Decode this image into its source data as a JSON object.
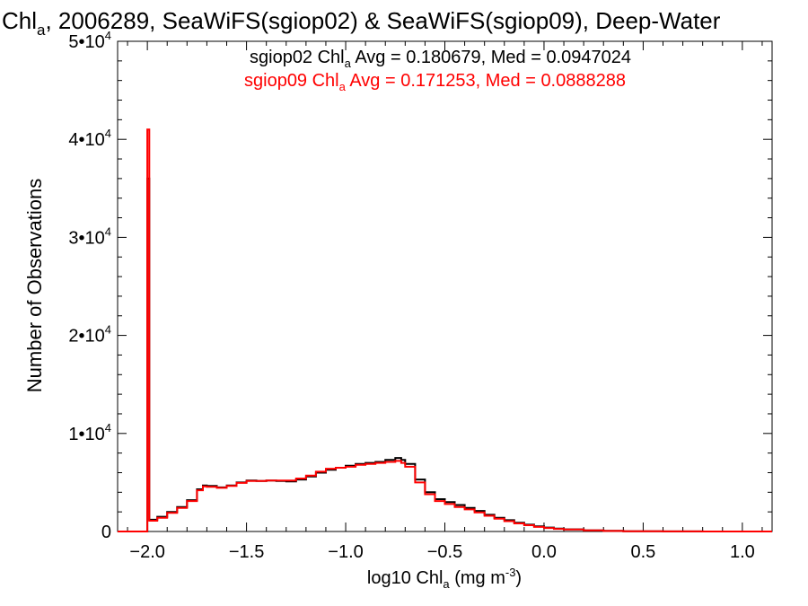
{
  "chart_data": {
    "type": "line",
    "title": {
      "pre": "Chl",
      "sub": "a",
      "post": ", 2006289, SeaWiFS(sgiop02) & SeaWiFS(sgiop09), Deep-Water"
    },
    "xlabel": {
      "pre": "log10 Chl",
      "sub": "a",
      "mid": " (mg m",
      "sup": "-3",
      "post": ")"
    },
    "ylabel": "Number of Observations",
    "xlim": [
      -2.15,
      1.15
    ],
    "ylim": [
      0,
      50000
    ],
    "x_ticks": [
      {
        "value": -2.0,
        "label": "-2.0"
      },
      {
        "value": -1.5,
        "label": "-1.5"
      },
      {
        "value": -1.0,
        "label": "-1.0"
      },
      {
        "value": -0.5,
        "label": "-0.5"
      },
      {
        "value": 0.0,
        "label": "0.0"
      },
      {
        "value": 0.5,
        "label": "0.5"
      },
      {
        "value": 1.0,
        "label": "1.0"
      }
    ],
    "y_ticks": [
      {
        "value": 0,
        "label": "0",
        "exp": ""
      },
      {
        "value": 10000,
        "label": "1•10",
        "exp": "4"
      },
      {
        "value": 20000,
        "label": "2•10",
        "exp": "4"
      },
      {
        "value": 30000,
        "label": "3•10",
        "exp": "4"
      },
      {
        "value": 40000,
        "label": "4•10",
        "exp": "4"
      },
      {
        "value": 50000,
        "label": "5•10",
        "exp": "4"
      }
    ],
    "annotations": [
      {
        "pre": "sgiop02 Chl",
        "sub": "a",
        "post": " Avg = 0.180679, Med = 0.0947024",
        "color": "#000000"
      },
      {
        "pre": "sgiop09 Chl",
        "sub": "a",
        "post": " Avg = 0.171253, Med = 0.0888288",
        "color": "#ff0000"
      }
    ],
    "series": [
      {
        "color": "#000000",
        "x": [
          -2.15,
          -2.0,
          -2.0,
          -1.99,
          -1.95,
          -1.9,
          -1.85,
          -1.8,
          -1.75,
          -1.72,
          -1.7,
          -1.65,
          -1.6,
          -1.55,
          -1.5,
          -1.45,
          -1.4,
          -1.35,
          -1.3,
          -1.25,
          -1.2,
          -1.15,
          -1.1,
          -1.05,
          -1.0,
          -0.95,
          -0.9,
          -0.85,
          -0.8,
          -0.75,
          -0.72,
          -0.7,
          -0.65,
          -0.6,
          -0.55,
          -0.5,
          -0.45,
          -0.4,
          -0.35,
          -0.3,
          -0.25,
          -0.2,
          -0.15,
          -0.1,
          -0.05,
          0.0,
          0.05,
          0.1,
          0.2,
          0.3,
          0.4,
          0.5,
          0.6,
          0.8,
          1.0,
          1.15
        ],
        "y": [
          0,
          0,
          36000,
          1200,
          1500,
          2000,
          2500,
          3200,
          4300,
          4700,
          4650,
          4500,
          4700,
          5000,
          5200,
          5150,
          5200,
          5150,
          5100,
          5300,
          5600,
          6000,
          6300,
          6500,
          6700,
          6900,
          7000,
          7100,
          7300,
          7500,
          7300,
          6900,
          5300,
          4000,
          3300,
          3000,
          2700,
          2400,
          2100,
          1700,
          1400,
          1150,
          900,
          700,
          520,
          400,
          300,
          220,
          120,
          60,
          30,
          15,
          8,
          3,
          1,
          0
        ]
      },
      {
        "color": "#ff0000",
        "x": [
          -2.15,
          -2.0,
          -2.0,
          -1.99,
          -1.95,
          -1.9,
          -1.85,
          -1.8,
          -1.75,
          -1.72,
          -1.7,
          -1.65,
          -1.6,
          -1.55,
          -1.5,
          -1.45,
          -1.4,
          -1.35,
          -1.3,
          -1.25,
          -1.2,
          -1.15,
          -1.1,
          -1.05,
          -1.0,
          -0.95,
          -0.9,
          -0.85,
          -0.8,
          -0.75,
          -0.72,
          -0.7,
          -0.65,
          -0.6,
          -0.55,
          -0.5,
          -0.45,
          -0.4,
          -0.35,
          -0.3,
          -0.25,
          -0.2,
          -0.15,
          -0.1,
          -0.05,
          0.0,
          0.05,
          0.1,
          0.2,
          0.3,
          0.4,
          0.5,
          0.6,
          0.8,
          1.0,
          1.15
        ],
        "y": [
          0,
          0,
          41000,
          1100,
          1400,
          1900,
          2400,
          3100,
          4200,
          4600,
          4550,
          4450,
          4650,
          4950,
          5150,
          5150,
          5200,
          5200,
          5200,
          5400,
          5700,
          6100,
          6400,
          6500,
          6600,
          6800,
          6900,
          7000,
          7100,
          7200,
          7000,
          6600,
          5000,
          3800,
          3100,
          2800,
          2500,
          2250,
          1950,
          1600,
          1300,
          1050,
          820,
          640,
          470,
          360,
          270,
          200,
          110,
          55,
          28,
          14,
          7,
          3,
          1,
          0
        ]
      }
    ]
  }
}
